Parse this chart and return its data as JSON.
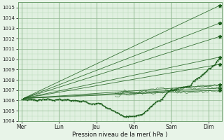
{
  "bg_color": "#e8f4e8",
  "plot_bg": "#e0f0e0",
  "grid_color_minor": "#b8d8b8",
  "grid_color_major": "#90b890",
  "line_color": "#1a5c1a",
  "ylabel": "Pression niveau de la mer( hPa )",
  "ylim": [
    1004,
    1015.5
  ],
  "yticks": [
    1004,
    1005,
    1006,
    1007,
    1008,
    1009,
    1010,
    1011,
    1012,
    1013,
    1014,
    1015
  ],
  "xtick_labels": [
    "Mer",
    "Lun",
    "Jeu",
    "Ven",
    "Sam",
    "Dim"
  ],
  "xtick_positions": [
    0,
    1,
    2,
    3,
    4,
    5
  ],
  "endpoints": [
    1015.2,
    1013.5,
    1012.2,
    1010.2,
    1009.5,
    1007.5,
    1007.2,
    1007.0
  ],
  "fan_start_x": 0.05
}
